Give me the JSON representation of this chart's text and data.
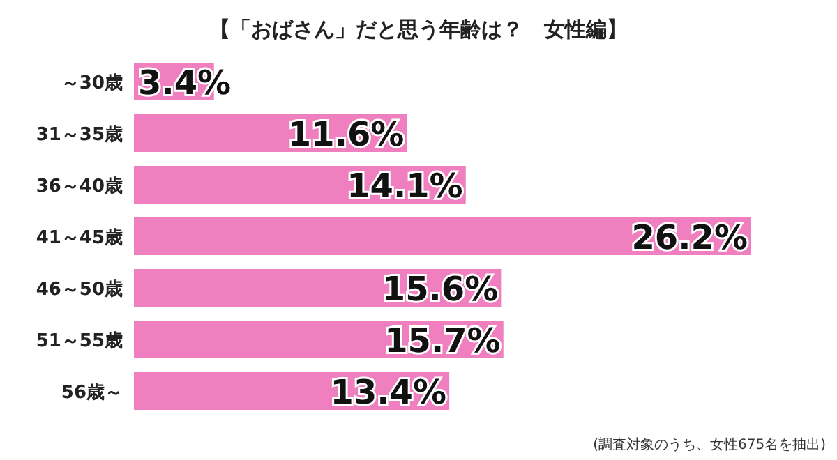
{
  "chart_data": {
    "type": "bar",
    "orientation": "horizontal",
    "title": "【「おばさん」だと思う年齢は？　女性編】",
    "categories": [
      "～30歳",
      "31～35歳",
      "36～40歳",
      "41～45歳",
      "46～50歳",
      "51～55歳",
      "56歳～"
    ],
    "values": [
      3.4,
      11.6,
      14.1,
      26.2,
      15.6,
      15.7,
      13.4
    ],
    "value_labels": [
      "3.4%",
      "11.6%",
      "14.1%",
      "26.2%",
      "15.6%",
      "15.7%",
      "13.4%"
    ],
    "color": "#ef7fbf",
    "annotations": [
      "(調査対象のうち、女性675名を抽出)"
    ]
  }
}
